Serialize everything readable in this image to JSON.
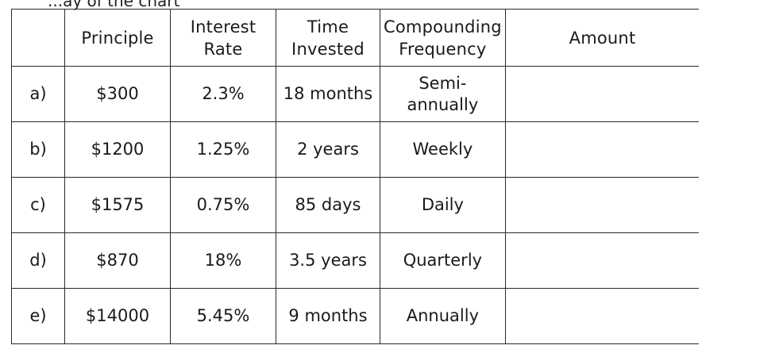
{
  "top_text": "...ay of the chart",
  "table": {
    "headers": [
      "",
      "Principle",
      "Interest Rate",
      "Time Invested",
      "Compounding Frequency",
      "Amount"
    ],
    "rows": [
      {
        "label": "a)",
        "principle": "$300",
        "rate": "2.3%",
        "time": "18 months",
        "frequency": "Semi-annually",
        "amount": ""
      },
      {
        "label": "b)",
        "principle": "$1200",
        "rate": "1.25%",
        "time": "2 years",
        "frequency": "Weekly",
        "amount": ""
      },
      {
        "label": "c)",
        "principle": "$1575",
        "rate": "0.75%",
        "time": "85 days",
        "frequency": "Daily",
        "amount": ""
      },
      {
        "label": "d)",
        "principle": "$870",
        "rate": "18%",
        "time": "3.5 years",
        "frequency": "Quarterly",
        "amount": ""
      },
      {
        "label": "e)",
        "principle": "$14000",
        "rate": "5.45%",
        "time": "9 months",
        "frequency": "Annually",
        "amount": ""
      }
    ]
  }
}
